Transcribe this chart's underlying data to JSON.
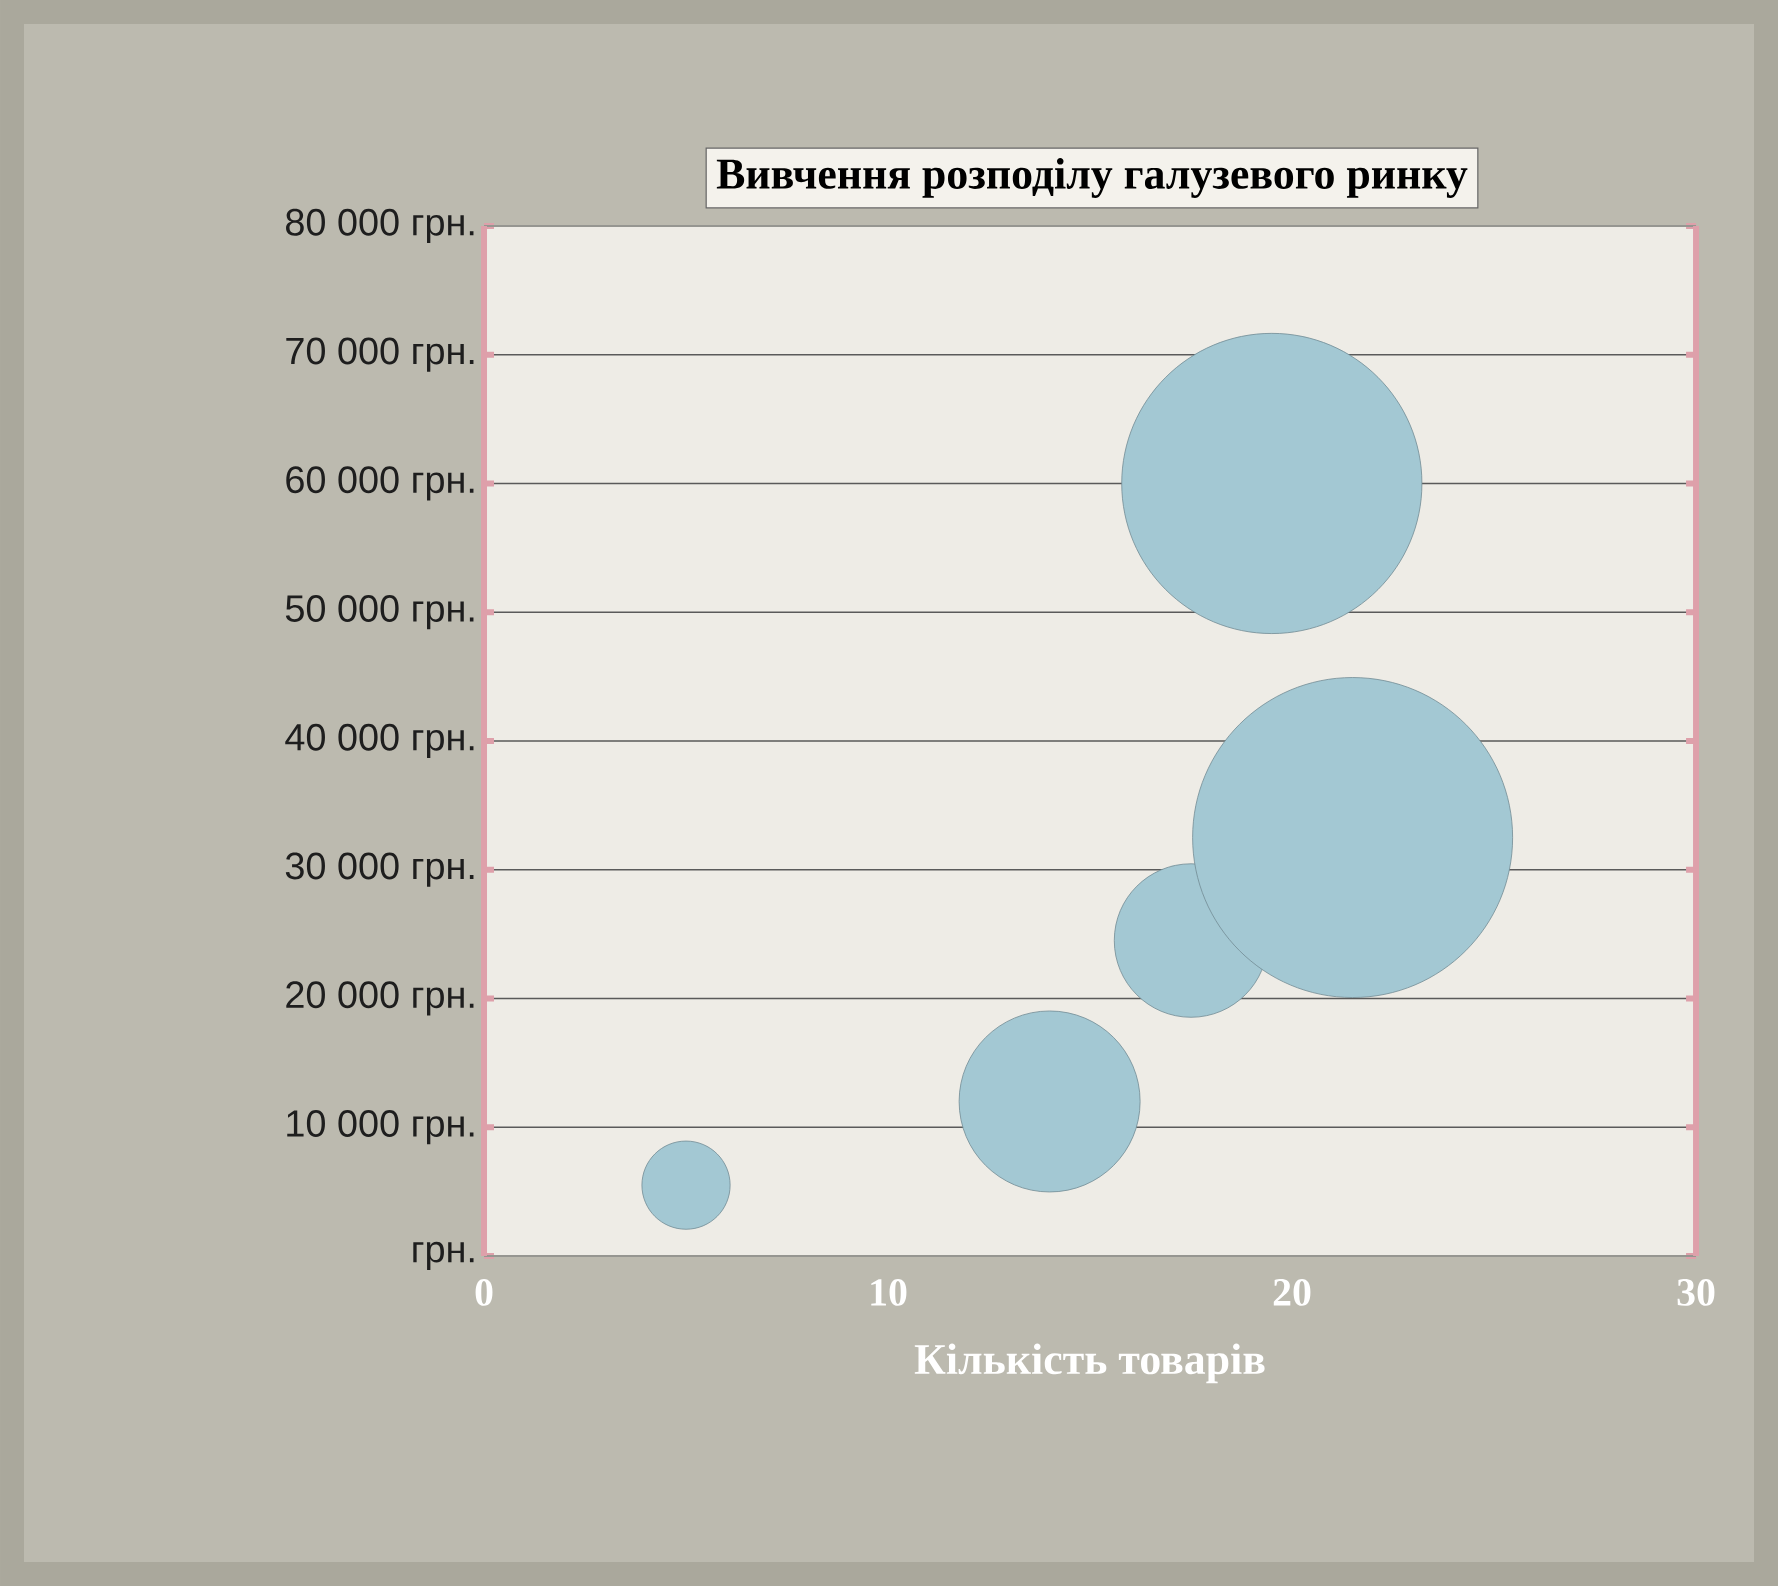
{
  "chart_data": {
    "type": "bubble",
    "title": "Вивчення розподілу галузевого ринку",
    "xlabel": "Кількість товарів",
    "x": [
      5,
      14,
      17.5,
      19.5,
      21.5
    ],
    "values": [
      5500,
      12000,
      24500,
      60000,
      32500
    ],
    "sizes": [
      0.076,
      0.32,
      0.23,
      0.88,
      1
    ],
    "color": "#a3c8d3",
    "xlim": [
      0,
      30
    ],
    "ylim": [
      0,
      80000
    ],
    "xticks": [
      0,
      10,
      20,
      30
    ],
    "yticks": [
      {
        "value": 0,
        "label": "грн."
      },
      {
        "value": 10000,
        "label": "10 000 грн."
      },
      {
        "value": 20000,
        "label": "20 000 грн."
      },
      {
        "value": 30000,
        "label": "30 000 грн."
      },
      {
        "value": 40000,
        "label": "40 000 грн."
      },
      {
        "value": 50000,
        "label": "50 000 грн."
      },
      {
        "value": 60000,
        "label": "60 000 грн."
      },
      {
        "value": 70000,
        "label": "70 000 грн."
      },
      {
        "value": 80000,
        "label": "80 000 грн."
      }
    ],
    "grid": "y"
  }
}
